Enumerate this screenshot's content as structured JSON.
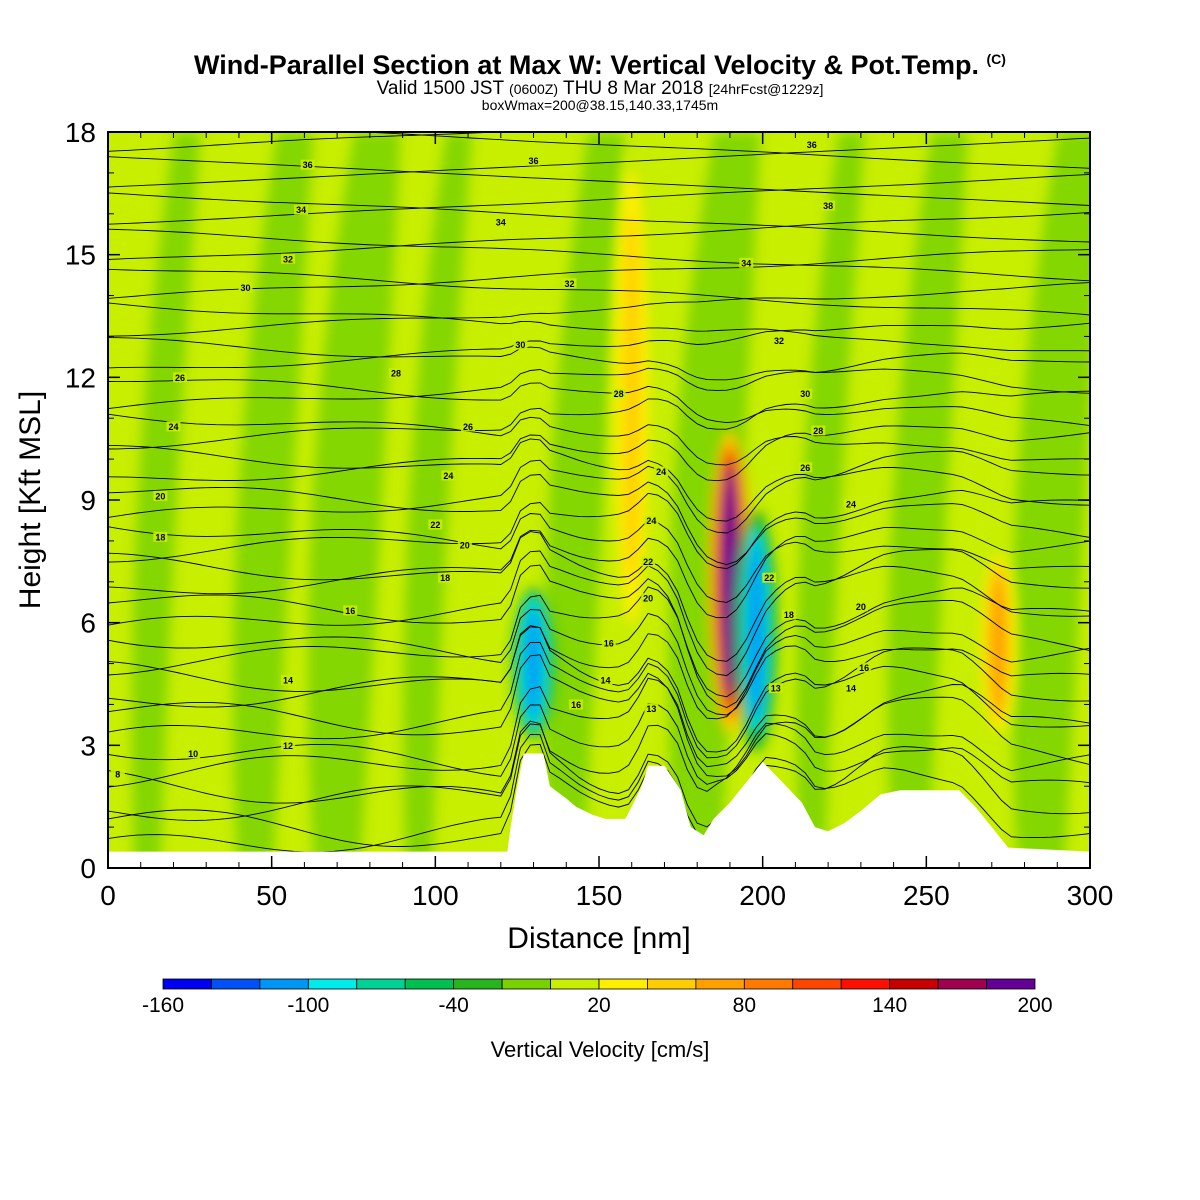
{
  "title": {
    "main": "Wind-Parallel Section at Max W: Vertical Velocity & Pot.Temp.",
    "mark": "(C)",
    "valid_prefix": "Valid 1500 JST",
    "valid_zulu": "(0600Z)",
    "valid_date": "THU 8 Mar 2018",
    "forecast": "[24hrFcst@1229z]",
    "box": "boxWmax=200@38.15,140.33,1745m"
  },
  "chart_data": {
    "type": "heatmap",
    "xlabel": "Distance [nm]",
    "ylabel": "Height [Kft MSL]",
    "xlim": [
      0,
      300
    ],
    "ylim": [
      0,
      18
    ],
    "x_ticks": [
      "0",
      "50",
      "100",
      "150",
      "200",
      "250",
      "300"
    ],
    "y_ticks": [
      "0",
      "3",
      "6",
      "9",
      "12",
      "15",
      "18"
    ],
    "colorbar": {
      "label": "Vertical Velocity [cm/s]",
      "range": [
        -160,
        200
      ],
      "ticks": [
        "-160",
        "-100",
        "-40",
        "20",
        "80",
        "140",
        "200"
      ],
      "colors": [
        "#0000f0",
        "#0050f5",
        "#0096f5",
        "#00ebeb",
        "#00d296",
        "#00be50",
        "#28b41e",
        "#78d200",
        "#c8ee00",
        "#ffee00",
        "#ffcd00",
        "#ffa000",
        "#ff7800",
        "#ff4600",
        "#ff0f00",
        "#c80000",
        "#a00050",
        "#640096"
      ]
    },
    "updrafts": [
      {
        "x": 130,
        "ymin": 3,
        "ymax": 7,
        "w": -120
      },
      {
        "x": 160,
        "ymin": 5,
        "ymax": 18,
        "w": 40
      },
      {
        "x": 190,
        "ymin": 3,
        "ymax": 11,
        "w": 190
      },
      {
        "x": 198,
        "ymin": 2.6,
        "ymax": 9,
        "w": -110
      },
      {
        "x": 272,
        "ymin": 3,
        "ymax": 8,
        "w": 60
      }
    ],
    "terrain": [
      [
        0,
        0.4
      ],
      [
        122,
        0.4
      ],
      [
        123,
        1
      ],
      [
        125,
        2
      ],
      [
        127,
        2.8
      ],
      [
        133,
        2.8
      ],
      [
        135,
        2
      ],
      [
        140,
        1.7
      ],
      [
        143,
        1.5
      ],
      [
        148,
        1.3
      ],
      [
        152,
        1.2
      ],
      [
        158,
        1.2
      ],
      [
        160,
        1.5
      ],
      [
        163,
        2
      ],
      [
        165,
        2.5
      ],
      [
        170,
        2.5
      ],
      [
        175,
        1.9
      ],
      [
        178,
        1
      ],
      [
        182,
        0.8
      ],
      [
        185,
        1.2
      ],
      [
        190,
        1.6
      ],
      [
        194,
        2
      ],
      [
        200,
        2.6
      ],
      [
        206,
        2.1
      ],
      [
        212,
        1.6
      ],
      [
        216,
        1
      ],
      [
        220,
        0.9
      ],
      [
        225,
        1.1
      ],
      [
        230,
        1.4
      ],
      [
        236,
        1.8
      ],
      [
        242,
        1.9
      ],
      [
        260,
        1.9
      ],
      [
        265,
        1.5
      ],
      [
        270,
        1
      ],
      [
        275,
        0.5
      ],
      [
        300,
        0.4
      ]
    ],
    "isentrope_labels": [
      {
        "text": "8",
        "x": 3,
        "y": 2.3
      },
      {
        "text": "10",
        "x": 26,
        "y": 2.8
      },
      {
        "text": "12",
        "x": 55,
        "y": 3
      },
      {
        "text": "14",
        "x": 55,
        "y": 4.6
      },
      {
        "text": "16",
        "x": 74,
        "y": 6.3
      },
      {
        "text": "18",
        "x": 16,
        "y": 8.1
      },
      {
        "text": "20",
        "x": 16,
        "y": 9.1
      },
      {
        "text": "24",
        "x": 20,
        "y": 10.8
      },
      {
        "text": "26",
        "x": 22,
        "y": 12
      },
      {
        "text": "28",
        "x": 88,
        "y": 12.1
      },
      {
        "text": "30",
        "x": 42,
        "y": 14.2
      },
      {
        "text": "32",
        "x": 55,
        "y": 14.9
      },
      {
        "text": "34",
        "x": 59,
        "y": 16.1
      },
      {
        "text": "36",
        "x": 61,
        "y": 17.2
      },
      {
        "text": "18",
        "x": 103,
        "y": 7.1
      },
      {
        "text": "20",
        "x": 109,
        "y": 7.9
      },
      {
        "text": "22",
        "x": 100,
        "y": 8.4
      },
      {
        "text": "24",
        "x": 104,
        "y": 9.6
      },
      {
        "text": "26",
        "x": 110,
        "y": 10.8
      },
      {
        "text": "30",
        "x": 126,
        "y": 12.8
      },
      {
        "text": "32",
        "x": 141,
        "y": 14.3
      },
      {
        "text": "34",
        "x": 120,
        "y": 15.8
      },
      {
        "text": "36",
        "x": 130,
        "y": 17.3
      },
      {
        "text": "16",
        "x": 143,
        "y": 4
      },
      {
        "text": "14",
        "x": 152,
        "y": 4.6
      },
      {
        "text": "16",
        "x": 153,
        "y": 5.5
      },
      {
        "text": "13",
        "x": 166,
        "y": 3.9
      },
      {
        "text": "20",
        "x": 165,
        "y": 6.6
      },
      {
        "text": "22",
        "x": 165,
        "y": 7.5
      },
      {
        "text": "24",
        "x": 166,
        "y": 8.5
      },
      {
        "text": "24",
        "x": 169,
        "y": 9.7
      },
      {
        "text": "28",
        "x": 156,
        "y": 11.6
      },
      {
        "text": "34",
        "x": 195,
        "y": 14.8
      },
      {
        "text": "36",
        "x": 215,
        "y": 17.7
      },
      {
        "text": "38",
        "x": 220,
        "y": 16.2
      },
      {
        "text": "32",
        "x": 205,
        "y": 12.9
      },
      {
        "text": "30",
        "x": 213,
        "y": 11.6
      },
      {
        "text": "28",
        "x": 217,
        "y": 10.7
      },
      {
        "text": "26",
        "x": 213,
        "y": 9.8
      },
      {
        "text": "22",
        "x": 202,
        "y": 7.1
      },
      {
        "text": "18",
        "x": 208,
        "y": 6.2
      },
      {
        "text": "13",
        "x": 204,
        "y": 4.4
      },
      {
        "text": "24",
        "x": 227,
        "y": 8.9
      },
      {
        "text": "20",
        "x": 230,
        "y": 6.4
      },
      {
        "text": "16",
        "x": 231,
        "y": 4.9
      },
      {
        "text": "14",
        "x": 227,
        "y": 4.4
      }
    ]
  }
}
